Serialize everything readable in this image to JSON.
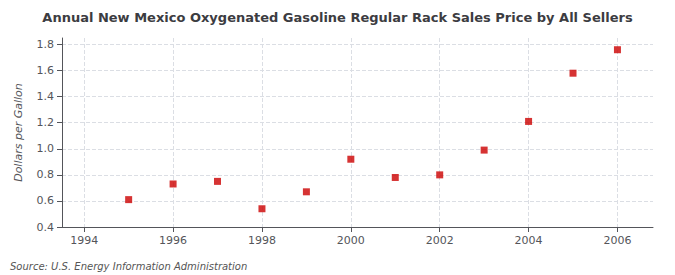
{
  "chart_data": {
    "type": "scatter",
    "title": "Annual New Mexico Oxygenated Gasoline Regular Rack Sales Price by All Sellers",
    "ylabel": "Dollars per Gallon",
    "annotations": [
      "Source: U.S. Energy Information Administration"
    ],
    "x": [
      1995,
      1996,
      1997,
      1998,
      1999,
      2000,
      2001,
      2002,
      2003,
      2004,
      2005,
      2006
    ],
    "values": [
      0.61,
      0.73,
      0.75,
      0.54,
      0.67,
      0.92,
      0.78,
      0.8,
      0.99,
      1.21,
      1.58,
      1.76
    ],
    "color": "#cc0000",
    "marker": "square",
    "xlim": [
      1993.5,
      2006.8
    ],
    "ylim": [
      0.4,
      1.85
    ],
    "xticks": [
      1994,
      1996,
      1998,
      2000,
      2002,
      2004,
      2006
    ],
    "yticks": [
      0.4,
      0.6,
      0.8,
      {
        "value": 1.0,
        "label": "1.0"
      },
      1.2,
      1.4,
      1.6,
      1.8
    ],
    "grid": true
  }
}
